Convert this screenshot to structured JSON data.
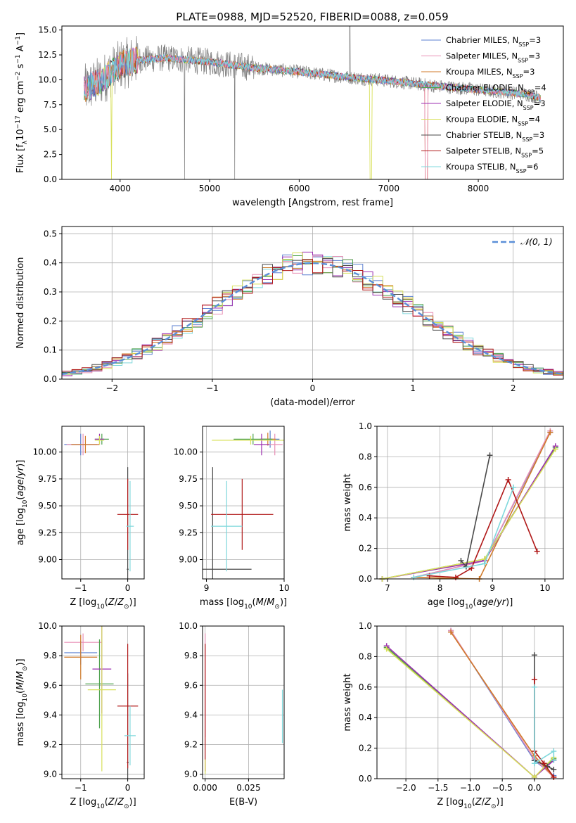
{
  "figure": {
    "title": "PLATE=0988, MJD=52520, FIBERID=0088, z=0.059"
  },
  "series_legend": [
    {
      "name": "Chabrier MILES, N_SSP=3",
      "base": "Chabrier MILES, N",
      "sub": "SSP",
      "tail": "=3",
      "color": "#5b7fd0"
    },
    {
      "name": "Salpeter MILES, N_SSP=3",
      "base": "Salpeter MILES, N",
      "sub": "SSP",
      "tail": "=3",
      "color": "#e88fb5"
    },
    {
      "name": "Kroupa MILES, N_SSP=3",
      "base": "Kroupa MILES, N",
      "sub": "SSP",
      "tail": "=3",
      "color": "#d07a2a"
    },
    {
      "name": "Chabrier ELODIE, N_SSP=4",
      "base": "Chabrier ELODIE, N",
      "sub": "SSP",
      "tail": "=4",
      "color": "#4ea24e"
    },
    {
      "name": "Salpeter ELODIE, N_SSP=3",
      "base": "Salpeter ELODIE, N",
      "sub": "SSP",
      "tail": "=3",
      "color": "#9c2fb0"
    },
    {
      "name": "Kroupa ELODIE, N_SSP=4",
      "base": "Kroupa ELODIE, N",
      "sub": "SSP",
      "tail": "=4",
      "color": "#d8e05a"
    },
    {
      "name": "Chabrier STELIB, N_SSP=3",
      "base": "Chabrier STELIB, N",
      "sub": "SSP",
      "tail": "=3",
      "color": "#4a4a4a"
    },
    {
      "name": "Salpeter STELIB, N_SSP=5",
      "base": "Salpeter STELIB, N",
      "sub": "SSP",
      "tail": "=5",
      "color": "#b01818"
    },
    {
      "name": "Kroupa STELIB, N_SSP=6",
      "base": "Kroupa STELIB, N",
      "sub": "SSP",
      "tail": "=6",
      "color": "#7fd8dc"
    }
  ],
  "chart_data": [
    {
      "id": "spectrum",
      "type": "line",
      "xlabel": "wavelength [Angstrom, rest frame]",
      "ylabel": "Flux [f_λ 10^-17 erg cm^-2 s^-1 A^-1]",
      "ylabel_parts": {
        "a": "Flux [f",
        "b": "λ",
        "c": "10",
        "d": "−17",
        "e": " erg cm",
        "f": "−2",
        "g": " s",
        "h": "−1",
        "i": " A",
        "j": "−1",
        "k": "]"
      },
      "xlim": [
        3350,
        8950
      ],
      "ylim": [
        0,
        15.4
      ],
      "xticks": [
        4000,
        5000,
        6000,
        7000,
        8000
      ],
      "yticks": [
        0.0,
        2.5,
        5.0,
        7.5,
        10.0,
        12.5,
        15.0
      ],
      "ytick_labels": [
        "0.0",
        "2.5",
        "5.0",
        "7.5",
        "10.0",
        "12.5",
        "15.0"
      ],
      "observed_color": "#808080",
      "model_color": "#7fd8dc",
      "continuum_shape": {
        "x": [
          3600,
          3800,
          4000,
          4200,
          4500,
          5000,
          5500,
          6000,
          6500,
          7000,
          7500,
          8000,
          8500,
          8700
        ],
        "y": [
          9.0,
          10.0,
          11.5,
          12.0,
          12.2,
          11.8,
          11.2,
          10.8,
          10.3,
          9.9,
          9.4,
          9.0,
          8.6,
          8.2
        ]
      }
    },
    {
      "id": "residuals",
      "type": "step",
      "xlabel": "(data-model)/error",
      "ylabel": "Normed distribution",
      "xlim": [
        -2.5,
        2.5
      ],
      "ylim": [
        0,
        0.525
      ],
      "xticks": [
        -2,
        -1,
        0,
        1,
        2
      ],
      "xtick_labels": [
        "−2",
        "−1",
        "0",
        "1",
        "2"
      ],
      "yticks": [
        0.0,
        0.1,
        0.2,
        0.3,
        0.4,
        0.5
      ],
      "ytick_labels": [
        "0.0",
        "0.1",
        "0.2",
        "0.3",
        "0.4",
        "0.5"
      ],
      "legend": "𝒩(0, 1)",
      "normal_color": "#5b8fd8",
      "bin_width": 0.1
    },
    {
      "id": "age_vs_Z",
      "type": "errorbar",
      "xlabel": "Z [log10(Z/Z⊙)]",
      "ylabel": "age [log10(age/yr)]",
      "xlim": [
        -1.4,
        0.35
      ],
      "ylim": [
        8.82,
        10.24
      ],
      "xticks": [
        -1,
        0
      ],
      "xtick_labels": [
        "−1",
        "0"
      ],
      "yticks": [
        9.0,
        9.25,
        9.5,
        9.75,
        10.0
      ],
      "ytick_labels": [
        "9.00",
        "9.25",
        "9.50",
        "9.75",
        "10.00"
      ],
      "points": [
        {
          "series": 0,
          "x": -1.0,
          "y": 10.07,
          "xerr": 0.35,
          "yerr": 0.1
        },
        {
          "series": 1,
          "x": -0.95,
          "y": 10.07,
          "xerr": 0.35,
          "yerr": 0.1
        },
        {
          "series": 2,
          "x": -0.9,
          "y": 10.07,
          "xerr": 0.3,
          "yerr": 0.08
        },
        {
          "series": 3,
          "x": -0.55,
          "y": 10.12,
          "xerr": 0.15,
          "yerr": 0.05
        },
        {
          "series": 4,
          "x": -0.6,
          "y": 10.12,
          "xerr": 0.1,
          "yerr": 0.05
        },
        {
          "series": 5,
          "x": -0.6,
          "y": 10.11,
          "xerr": 0.1,
          "yerr": 0.04
        },
        {
          "series": 6,
          "x": 0.0,
          "y": 8.91,
          "xerr": 0.02,
          "yerr": 0.95
        },
        {
          "series": 7,
          "x": 0.0,
          "y": 9.42,
          "xerr": 0.22,
          "yerr": 0.33
        },
        {
          "series": 8,
          "x": 0.05,
          "y": 9.31,
          "xerr": 0.08,
          "yerr": 0.42
        }
      ]
    },
    {
      "id": "age_vs_mass",
      "type": "errorbar",
      "xlabel": "mass [log10(M/M⊙)]",
      "ylabel": "",
      "xlim": [
        8.95,
        10.0
      ],
      "ylim": [
        8.82,
        10.24
      ],
      "xticks": [
        9,
        10
      ],
      "xtick_labels": [
        "9",
        "10"
      ],
      "yticks": [
        9.0,
        9.25,
        9.5,
        9.75,
        10.0
      ],
      "ytick_labels": [
        "9.00",
        "9.25",
        "9.50",
        "9.75",
        "10.00"
      ],
      "points": [
        {
          "series": 0,
          "x": 9.82,
          "y": 10.12,
          "xerr": 0.12,
          "yerr": 0.08
        },
        {
          "series": 1,
          "x": 9.88,
          "y": 10.07,
          "xerr": 0.1,
          "yerr": 0.1
        },
        {
          "series": 2,
          "x": 9.79,
          "y": 10.12,
          "xerr": 0.1,
          "yerr": 0.06
        },
        {
          "series": 3,
          "x": 9.6,
          "y": 10.12,
          "xerr": 0.25,
          "yerr": 0.05
        },
        {
          "series": 4,
          "x": 9.71,
          "y": 10.07,
          "xerr": 0.1,
          "yerr": 0.1
        },
        {
          "series": 5,
          "x": 9.57,
          "y": 10.11,
          "xerr": 0.5,
          "yerr": 0.04
        },
        {
          "series": 6,
          "x": 9.08,
          "y": 8.91,
          "xerr": 0.5,
          "yerr": 0.95
        },
        {
          "series": 7,
          "x": 9.46,
          "y": 9.42,
          "xerr": 0.4,
          "yerr": 0.33
        },
        {
          "series": 8,
          "x": 9.26,
          "y": 9.31,
          "xerr": 0.2,
          "yerr": 0.42
        }
      ]
    },
    {
      "id": "massweight_vs_age",
      "type": "line",
      "xlabel": "age [log10(age/yr)]",
      "ylabel": "mass weight",
      "xlim": [
        6.8,
        10.35
      ],
      "ylim": [
        0,
        1.0
      ],
      "xticks": [
        7,
        8,
        9,
        10
      ],
      "xtick_labels": [
        "7",
        "8",
        "9",
        "10"
      ],
      "yticks": [
        0.0,
        0.2,
        0.4,
        0.6,
        0.8,
        1.0
      ],
      "ytick_labels": [
        "0.0",
        "0.2",
        "0.4",
        "0.6",
        "0.8",
        "1.0"
      ],
      "lines": [
        {
          "series": 0,
          "x": [
            7.5,
            8.85,
            10.1
          ],
          "y": [
            0.01,
            0.12,
            0.96
          ]
        },
        {
          "series": 1,
          "x": [
            7.5,
            8.85,
            10.1
          ],
          "y": [
            0.01,
            0.12,
            0.97
          ]
        },
        {
          "series": 2,
          "x": [
            7.5,
            8.75,
            10.1
          ],
          "y": [
            0.01,
            0.0,
            0.96
          ]
        },
        {
          "series": 3,
          "x": [
            6.9,
            8.85,
            10.2
          ],
          "y": [
            0.0,
            0.13,
            0.86
          ]
        },
        {
          "series": 4,
          "x": [
            6.9,
            8.85,
            10.2
          ],
          "y": [
            0.0,
            0.12,
            0.87
          ]
        },
        {
          "series": 5,
          "x": [
            6.9,
            8.85,
            10.2
          ],
          "y": [
            0.0,
            0.13,
            0.85
          ]
        },
        {
          "series": 6,
          "x": [
            8.4,
            8.5,
            8.95
          ],
          "y": [
            0.12,
            0.08,
            0.81
          ]
        },
        {
          "series": 7,
          "x": [
            7.8,
            8.3,
            8.6,
            9.3,
            9.85
          ],
          "y": [
            0.02,
            0.01,
            0.07,
            0.65,
            0.18
          ]
        },
        {
          "series": 8,
          "x": [
            7.5,
            8.85,
            9.4
          ],
          "y": [
            0.01,
            0.1,
            0.6
          ]
        }
      ]
    },
    {
      "id": "mass_vs_Z",
      "type": "errorbar",
      "xlabel": "Z [log10(Z/Z⊙)]",
      "ylabel": "mass [log10(M/M⊙)]",
      "xlim": [
        -1.4,
        0.35
      ],
      "ylim": [
        8.97,
        10.0
      ],
      "xticks": [
        -1,
        0
      ],
      "xtick_labels": [
        "−1",
        "0"
      ],
      "yticks": [
        9.0,
        9.2,
        9.4,
        9.6,
        9.8,
        10.0
      ],
      "ytick_labels": [
        "9.0",
        "9.2",
        "9.4",
        "9.6",
        "9.8",
        "10.0"
      ],
      "points": [
        {
          "series": 0,
          "x": -1.0,
          "y": 9.82,
          "xerr": 0.35,
          "yerr": 0.08
        },
        {
          "series": 1,
          "x": -0.95,
          "y": 9.89,
          "xerr": 0.4,
          "yerr": 0.06
        },
        {
          "series": 2,
          "x": -1.0,
          "y": 9.79,
          "xerr": 0.35,
          "yerr": 0.15
        },
        {
          "series": 3,
          "x": -0.6,
          "y": 9.61,
          "xerr": 0.3,
          "yerr": 0.3
        },
        {
          "series": 4,
          "x": -0.55,
          "y": 9.71,
          "xerr": 0.2,
          "yerr": 0.3
        },
        {
          "series": 5,
          "x": -0.55,
          "y": 9.57,
          "xerr": 0.3,
          "yerr": 0.55
        },
        {
          "series": 6,
          "x": 0.0,
          "y": 9.08,
          "xerr": 0.02,
          "yerr": 0.6
        },
        {
          "series": 7,
          "x": 0.0,
          "y": 9.46,
          "xerr": 0.22,
          "yerr": 0.42
        },
        {
          "series": 8,
          "x": 0.05,
          "y": 9.26,
          "xerr": 0.12,
          "yerr": 0.2
        }
      ]
    },
    {
      "id": "mass_vs_ebv",
      "type": "errorbar",
      "xlabel": "E(B-V)",
      "ylabel": "",
      "xlim": [
        -0.0015,
        0.0455
      ],
      "ylim": [
        8.97,
        10.0
      ],
      "xticks": [
        0.0,
        0.025
      ],
      "xtick_labels": [
        "0.000",
        "0.025"
      ],
      "yticks": [
        9.0,
        9.2,
        9.4,
        9.6,
        9.8,
        10.0
      ],
      "ytick_labels": [
        "9.0",
        "9.2",
        "9.4",
        "9.6",
        "9.8",
        "10.0"
      ],
      "points": [
        {
          "series": 1,
          "x": 0.0,
          "y": 9.6,
          "xerr": 0.0,
          "yerr": 0.35
        },
        {
          "series": 7,
          "x": 0.0,
          "y": 9.45,
          "xerr": 0.0,
          "yerr": 0.43
        },
        {
          "series": 5,
          "x": 0.0,
          "y": 9.05,
          "xerr": 0.0,
          "yerr": 0.05
        },
        {
          "series": 8,
          "x": 0.0445,
          "y": 9.39,
          "xerr": 0.0,
          "yerr": 0.18
        }
      ]
    },
    {
      "id": "massweight_vs_Z",
      "type": "line",
      "xlabel": "Z [log10(Z/Z⊙)]",
      "ylabel": "mass weight",
      "xlim": [
        -2.45,
        0.45
      ],
      "ylim": [
        0,
        1.0
      ],
      "xticks": [
        -2.0,
        -1.5,
        -1.0,
        -0.5,
        0.0
      ],
      "xtick_labels": [
        "−2.0",
        "−1.5",
        "−1.0",
        "−0.5",
        "0.0"
      ],
      "yticks": [
        0.0,
        0.2,
        0.4,
        0.6,
        0.8,
        1.0
      ],
      "ytick_labels": [
        "0.0",
        "0.2",
        "0.4",
        "0.6",
        "0.8",
        "1.0"
      ],
      "lines": [
        {
          "series": 0,
          "x": [
            -1.3,
            0.0,
            0.3
          ],
          "y": [
            0.97,
            0.12,
            0.02
          ]
        },
        {
          "series": 1,
          "x": [
            -1.3,
            0.0,
            0.3
          ],
          "y": [
            0.97,
            0.13,
            0.01
          ]
        },
        {
          "series": 2,
          "x": [
            -1.3,
            0.0,
            0.3
          ],
          "y": [
            0.96,
            0.15,
            0.01
          ]
        },
        {
          "series": 3,
          "x": [
            -2.3,
            0.0,
            0.3
          ],
          "y": [
            0.86,
            0.01,
            0.13
          ]
        },
        {
          "series": 4,
          "x": [
            -2.3,
            0.0,
            0.3
          ],
          "y": [
            0.87,
            0.01,
            0.12
          ]
        },
        {
          "series": 5,
          "x": [
            -2.3,
            0.0,
            0.3
          ],
          "y": [
            0.85,
            0.01,
            0.14
          ]
        },
        {
          "series": 6,
          "x": [
            0.0,
            0.0,
            0.2,
            0.3
          ],
          "y": [
            0.81,
            0.12,
            0.08,
            0.06
          ]
        },
        {
          "series": 7,
          "x": [
            0.0,
            0.0,
            0.15,
            0.3
          ],
          "y": [
            0.65,
            0.18,
            0.1,
            0.01
          ]
        },
        {
          "series": 8,
          "x": [
            0.0,
            0.0,
            0.3,
            0.3
          ],
          "y": [
            0.6,
            0.1,
            0.18,
            0.12
          ]
        }
      ]
    }
  ]
}
